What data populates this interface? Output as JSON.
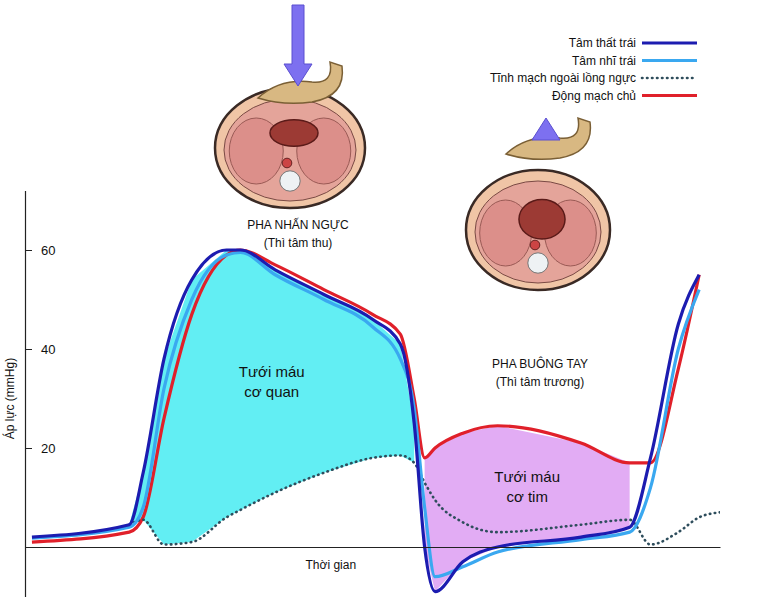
{
  "chart_data": {
    "type": "line",
    "x_label": "Thời gian",
    "y_label": "Áp lực (mmHg)",
    "xlim": [
      0,
      100
    ],
    "ylim": [
      -10,
      72
    ],
    "yticks": [
      20,
      40,
      60
    ],
    "tick_labels": "y",
    "legend": "top-right",
    "x": [
      1,
      15,
      17,
      20,
      24,
      29,
      31,
      36,
      43,
      50,
      54,
      56,
      57.5,
      59,
      63,
      68,
      80,
      87,
      90,
      94,
      97,
      100
    ],
    "series": [
      {
        "name": "Tâm thất trái",
        "color": "#1c1cb0",
        "line_style": "solid",
        "values": [
          2,
          4.5,
          15,
          38,
          54,
          60,
          60,
          56,
          51,
          46,
          41,
          25,
          0,
          -9,
          -3,
          0,
          2,
          4,
          18,
          45,
          55,
          null
        ]
      },
      {
        "name": "Tâm nhĩ trái",
        "color": "#3aa8f0",
        "line_style": "solid",
        "values": [
          1.8,
          4,
          8,
          32,
          50,
          59,
          59.5,
          55,
          50,
          44.5,
          38,
          28,
          8,
          -6,
          -4,
          -1,
          1.5,
          3,
          12,
          40,
          52,
          null
        ]
      },
      {
        "name": "Tĩnh mạch ngoài lồng ngực",
        "color": "#2e4d5c",
        "line_style": "dotted",
        "values": [
          null,
          4.5,
          5.5,
          0.5,
          1,
          6,
          7.5,
          11,
          15,
          18,
          18.5,
          17,
          13,
          9.5,
          5,
          3,
          4.5,
          5.5,
          0.5,
          3,
          6,
          7
        ]
      },
      {
        "name": "Động mạch chủ",
        "color": "#e0202a",
        "line_style": "solid",
        "values": [
          1,
          3,
          6,
          26,
          47,
          59,
          60,
          57,
          52,
          47,
          43,
          30,
          18,
          20,
          23,
          24.5,
          21,
          17,
          17,
          36,
          55,
          null
        ]
      }
    ],
    "areas": [
      {
        "label_lines": [
          "Tưới máu",
          "cơ quan"
        ],
        "upper": "Tâm thất trái",
        "lower": "Tĩnh mạch ngoài lồng ngực",
        "x_range": [
          15,
          56
        ],
        "color": "#62eef3"
      },
      {
        "label_lines": [
          "Tưới máu",
          "cơ tim"
        ],
        "upper": "Động mạch chủ",
        "lower": "Tâm thất trái",
        "x_range": [
          57.5,
          87
        ],
        "color": "#e2acf4"
      }
    ],
    "phases": [
      {
        "title": "PHA NHẤN NGỰC",
        "subtitle": "(Thì tâm thu)"
      },
      {
        "title": "PHA BUÔNG TAY",
        "subtitle": "(Thì tâm trương)"
      }
    ]
  }
}
